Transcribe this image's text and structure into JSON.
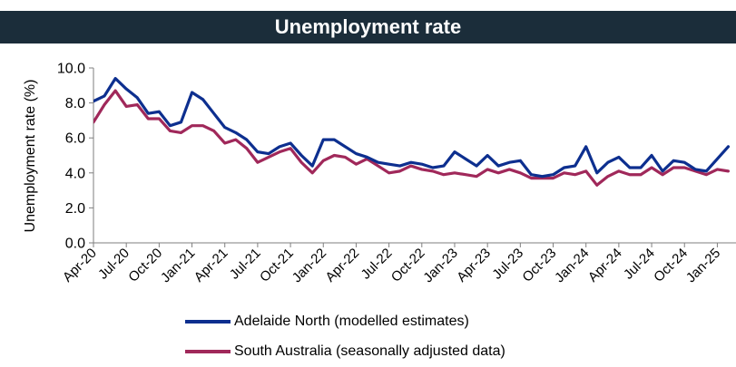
{
  "chart_data": {
    "type": "line",
    "title": "Unemployment rate",
    "ylabel": "Unemployment rate (%)",
    "xlabel": "",
    "ylim": [
      0,
      10
    ],
    "yticks": [
      "0.0",
      "2.0",
      "4.0",
      "6.0",
      "8.0",
      "10.0"
    ],
    "xticks": [
      "Apr-20",
      "Jul-20",
      "Oct-20",
      "Jan-21",
      "Apr-21",
      "Jul-21",
      "Oct-21",
      "Jan-22",
      "Apr-22",
      "Jul-22",
      "Oct-22",
      "Jan-23",
      "Apr-23",
      "Jul-23",
      "Oct-23",
      "Jan-24",
      "Apr-24",
      "Jul-24",
      "Oct-24",
      "Jan-25"
    ],
    "grid": false,
    "legend_position": "bottom",
    "x_start": "Apr-20",
    "series": [
      {
        "name": "Adelaide North (modelled estimates)",
        "color": "#0d2f8f",
        "values": [
          8.1,
          8.4,
          9.4,
          8.8,
          8.3,
          7.4,
          7.5,
          6.7,
          6.9,
          8.6,
          8.2,
          7.4,
          6.6,
          6.3,
          5.9,
          5.2,
          5.1,
          5.5,
          5.7,
          5.0,
          4.4,
          5.9,
          5.9,
          5.5,
          5.1,
          4.9,
          4.6,
          4.5,
          4.4,
          4.6,
          4.5,
          4.3,
          4.4,
          5.2,
          4.8,
          4.4,
          5.0,
          4.4,
          4.6,
          4.7,
          3.9,
          3.8,
          3.9,
          4.3,
          4.4,
          5.5,
          4.0,
          4.6,
          4.9,
          4.3,
          4.3,
          5.0,
          4.1,
          4.7,
          4.6,
          4.2,
          4.1,
          4.8,
          5.5
        ]
      },
      {
        "name": "South Australia (seasonally adjusted data)",
        "color": "#a0285a",
        "values": [
          6.9,
          7.9,
          8.7,
          7.8,
          7.9,
          7.1,
          7.1,
          6.4,
          6.3,
          6.7,
          6.7,
          6.4,
          5.7,
          5.9,
          5.4,
          4.6,
          4.9,
          5.2,
          5.4,
          4.6,
          4.0,
          4.7,
          5.0,
          4.9,
          4.5,
          4.8,
          4.4,
          4.0,
          4.1,
          4.4,
          4.2,
          4.1,
          3.9,
          4.0,
          3.9,
          3.8,
          4.2,
          4.0,
          4.2,
          4.0,
          3.7,
          3.7,
          3.7,
          4.0,
          3.9,
          4.1,
          3.3,
          3.8,
          4.1,
          3.9,
          3.9,
          4.3,
          3.9,
          4.3,
          4.3,
          4.1,
          3.9,
          4.2,
          4.1
        ]
      }
    ]
  }
}
